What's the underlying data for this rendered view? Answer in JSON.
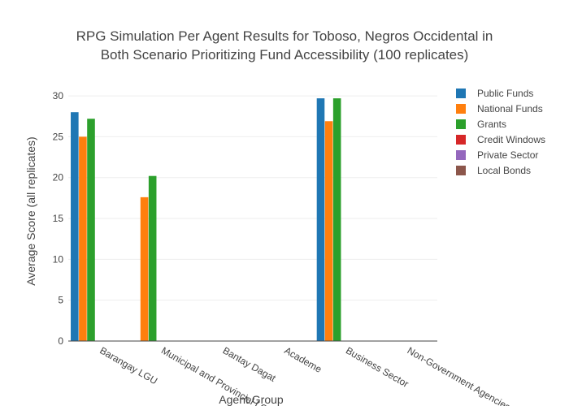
{
  "chart_data": {
    "type": "bar",
    "title_lines": [
      "RPG Simulation Per Agent Results for Toboso, Negros Occidental in",
      "Both Scenario Prioritizing Fund Accessibility (100 replicates)"
    ],
    "xlabel": "Agent Group",
    "ylabel": "Average Score (all replicates)",
    "ylim": [
      0,
      31
    ],
    "yticks": [
      0,
      5,
      10,
      15,
      20,
      25,
      30
    ],
    "ytick_labels": [
      "0",
      "5",
      "10",
      "15",
      "20",
      "25",
      "30"
    ],
    "grid": true,
    "legend_position": "top-right",
    "categories": [
      "Barangay LGU",
      "Municipal and Provincial LGU",
      "Bantay Dagat",
      "Academe",
      "Business Sector",
      "Non-Government Agencies"
    ],
    "series": [
      {
        "name": "Public Funds",
        "color": "#1f77b4",
        "values": [
          28.0,
          0,
          0,
          0,
          29.7,
          0
        ]
      },
      {
        "name": "National Funds",
        "color": "#ff7f0e",
        "values": [
          25.0,
          17.6,
          0,
          0,
          26.9,
          0
        ]
      },
      {
        "name": "Grants",
        "color": "#2ca02c",
        "values": [
          27.2,
          20.2,
          0,
          0,
          29.7,
          0
        ]
      },
      {
        "name": "Credit Windows",
        "color": "#d62728",
        "values": [
          0,
          0,
          0,
          0,
          0,
          0
        ]
      },
      {
        "name": "Private Sector",
        "color": "#9467bd",
        "values": [
          0,
          0,
          0,
          0,
          0,
          0
        ]
      },
      {
        "name": "Local Bonds",
        "color": "#8c564b",
        "values": [
          0,
          0,
          0,
          0,
          0,
          0
        ]
      }
    ]
  }
}
